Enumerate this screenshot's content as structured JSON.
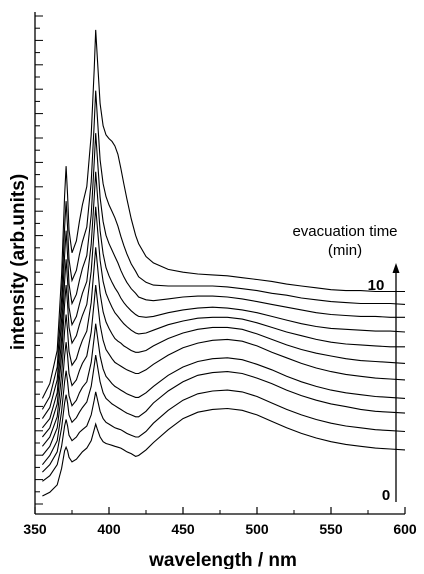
{
  "chart_data": {
    "type": "line",
    "title": "",
    "xlabel": "wavelength / nm",
    "ylabel": "intensity (arb.units)",
    "xlim": [
      350,
      600
    ],
    "x_ticks": [
      350,
      400,
      450,
      500,
      550,
      600
    ],
    "y_ticks_labeled": false,
    "grid": false,
    "legend": "none",
    "line_color": "#000000",
    "annotation": {
      "title_line1": "evacuation time",
      "title_line2": "(min)",
      "arrow_top_label": "10",
      "arrow_bottom_label": "0"
    },
    "series": [
      {
        "x": [
          355,
          360,
          365,
          368,
          370,
          371,
          372,
          373,
          375,
          378,
          380,
          382,
          385,
          388,
          390,
          391,
          392,
          394,
          396,
          398,
          400,
          402,
          404,
          406,
          408,
          410,
          412,
          415,
          418,
          420,
          425,
          430,
          440,
          450,
          460,
          470,
          480,
          490,
          500,
          510,
          520,
          530,
          540,
          550,
          560,
          570,
          580,
          590,
          600
        ],
        "y": [
          0.0,
          0.4,
          1.2,
          3.0,
          4.9,
          5.3,
          4.9,
          4.2,
          3.7,
          4.0,
          4.4,
          4.8,
          5.2,
          6.0,
          7.2,
          7.8,
          7.3,
          6.4,
          5.9,
          5.7,
          5.6,
          5.5,
          5.4,
          5.3,
          5.2,
          5.0,
          4.8,
          4.6,
          4.3,
          4.4,
          5.0,
          5.8,
          7.2,
          8.4,
          9.1,
          9.4,
          9.5,
          9.3,
          8.8,
          8.1,
          7.4,
          6.8,
          6.3,
          5.9,
          5.6,
          5.4,
          5.2,
          5.1,
          5.0
        ]
      },
      {
        "x": [
          355,
          360,
          365,
          368,
          370,
          371,
          372,
          373,
          375,
          378,
          380,
          382,
          385,
          388,
          390,
          391,
          392,
          394,
          396,
          398,
          400,
          402,
          404,
          406,
          408,
          410,
          412,
          415,
          418,
          420,
          425,
          430,
          440,
          450,
          460,
          470,
          480,
          490,
          500,
          510,
          520,
          530,
          540,
          550,
          560,
          570,
          580,
          590,
          600
        ],
        "y": [
          1.6,
          2.2,
          3.4,
          5.4,
          7.6,
          8.3,
          7.6,
          6.6,
          6.0,
          6.4,
          6.9,
          7.2,
          7.6,
          8.8,
          10.4,
          11.3,
          10.6,
          9.2,
          8.4,
          8.0,
          7.8,
          7.6,
          7.4,
          7.3,
          7.2,
          7.0,
          6.8,
          6.6,
          6.4,
          6.4,
          7.0,
          7.9,
          9.3,
          10.4,
          11.1,
          11.4,
          11.5,
          11.3,
          10.8,
          10.1,
          9.4,
          8.8,
          8.3,
          7.9,
          7.6,
          7.4,
          7.2,
          7.1,
          7.0
        ]
      },
      {
        "x": [
          355,
          360,
          365,
          368,
          370,
          371,
          372,
          373,
          375,
          378,
          380,
          382,
          385,
          388,
          390,
          391,
          392,
          394,
          396,
          398,
          400,
          402,
          404,
          406,
          408,
          410,
          412,
          415,
          418,
          420,
          425,
          430,
          440,
          450,
          460,
          470,
          480,
          490,
          500,
          510,
          520,
          530,
          540,
          550,
          560,
          570,
          580,
          590,
          600
        ],
        "y": [
          2.6,
          3.4,
          4.8,
          7.4,
          10.1,
          11.0,
          10.1,
          8.8,
          8.0,
          8.5,
          9.1,
          9.6,
          10.2,
          11.9,
          14.1,
          15.3,
          14.3,
          12.4,
          11.2,
          10.6,
          10.3,
          10.0,
          9.8,
          9.6,
          9.4,
          9.2,
          9.0,
          8.8,
          8.6,
          8.6,
          9.2,
          10.1,
          11.4,
          12.4,
          13.1,
          13.4,
          13.5,
          13.3,
          12.8,
          12.2,
          11.5,
          10.9,
          10.4,
          10.0,
          9.7,
          9.4,
          9.2,
          9.1,
          9.0
        ]
      },
      {
        "x": [
          355,
          360,
          365,
          368,
          370,
          371,
          372,
          373,
          375,
          378,
          380,
          382,
          385,
          388,
          390,
          391,
          392,
          394,
          396,
          398,
          400,
          402,
          404,
          406,
          408,
          410,
          412,
          415,
          418,
          420,
          425,
          430,
          440,
          450,
          460,
          470,
          480,
          490,
          500,
          510,
          520,
          530,
          540,
          550,
          560,
          570,
          580,
          590,
          600
        ],
        "y": [
          3.4,
          4.4,
          6.0,
          9.2,
          12.4,
          13.6,
          12.4,
          10.9,
          9.8,
          10.4,
          11.2,
          11.8,
          12.4,
          14.5,
          17.2,
          18.7,
          17.5,
          15.2,
          13.8,
          13.0,
          12.6,
          12.2,
          11.9,
          11.7,
          11.5,
          11.3,
          11.1,
          10.9,
          10.7,
          10.7,
          11.2,
          11.9,
          13.1,
          14.0,
          14.6,
          14.9,
          15.0,
          14.8,
          14.3,
          13.7,
          13.0,
          12.4,
          11.9,
          11.5,
          11.2,
          11.0,
          10.8,
          10.7,
          10.6
        ]
      },
      {
        "x": [
          355,
          360,
          365,
          368,
          370,
          371,
          372,
          373,
          375,
          378,
          380,
          382,
          385,
          388,
          390,
          391,
          392,
          394,
          396,
          398,
          400,
          402,
          404,
          406,
          408,
          410,
          412,
          415,
          418,
          420,
          425,
          430,
          440,
          450,
          460,
          470,
          480,
          490,
          500,
          510,
          520,
          530,
          540,
          550,
          560,
          570,
          580,
          590,
          600
        ],
        "y": [
          4.4,
          5.4,
          7.4,
          11.2,
          15.2,
          16.7,
          15.2,
          13.3,
          12.0,
          12.6,
          13.6,
          14.4,
          15.2,
          17.8,
          21.1,
          22.9,
          21.4,
          18.6,
          16.9,
          15.9,
          15.4,
          14.9,
          14.5,
          14.3,
          14.1,
          13.9,
          13.7,
          13.5,
          13.3,
          13.3,
          13.7,
          14.3,
          15.3,
          16.1,
          16.6,
          16.9,
          17.0,
          16.8,
          16.3,
          15.6,
          15.0,
          14.4,
          13.9,
          13.5,
          13.2,
          13.0,
          12.8,
          12.7,
          12.6
        ]
      },
      {
        "x": [
          355,
          360,
          365,
          368,
          370,
          371,
          372,
          373,
          375,
          378,
          380,
          382,
          385,
          388,
          390,
          391,
          392,
          394,
          396,
          398,
          400,
          402,
          404,
          406,
          408,
          410,
          412,
          415,
          418,
          420,
          425,
          430,
          440,
          450,
          460,
          470,
          480,
          490,
          500,
          510,
          520,
          530,
          540,
          550,
          560,
          570,
          580,
          590,
          600
        ],
        "y": [
          5.4,
          6.4,
          8.6,
          13.2,
          17.9,
          19.7,
          17.9,
          15.7,
          14.2,
          14.9,
          16.0,
          16.9,
          17.9,
          21.0,
          24.9,
          27.0,
          25.3,
          22.0,
          20.0,
          18.9,
          18.2,
          17.6,
          17.1,
          16.8,
          16.6,
          16.3,
          16.1,
          15.8,
          15.6,
          15.6,
          15.8,
          16.3,
          17.1,
          17.7,
          18.1,
          18.3,
          18.3,
          18.1,
          17.6,
          17.0,
          16.4,
          15.9,
          15.5,
          15.2,
          14.9,
          14.7,
          14.6,
          14.5,
          14.4
        ]
      },
      {
        "x": [
          355,
          360,
          365,
          368,
          370,
          371,
          372,
          373,
          375,
          378,
          380,
          382,
          385,
          388,
          390,
          391,
          392,
          394,
          396,
          398,
          400,
          402,
          404,
          406,
          408,
          410,
          412,
          415,
          418,
          420,
          425,
          430,
          440,
          450,
          460,
          470,
          480,
          490,
          500,
          510,
          520,
          530,
          540,
          550,
          560,
          570,
          580,
          590,
          600
        ],
        "y": [
          6.4,
          7.4,
          10.0,
          15.3,
          20.8,
          22.9,
          20.8,
          18.3,
          16.6,
          17.4,
          18.6,
          19.6,
          20.8,
          24.4,
          28.9,
          31.4,
          29.4,
          25.6,
          23.3,
          22.0,
          21.2,
          20.5,
          19.9,
          19.5,
          19.1,
          18.7,
          18.4,
          18.0,
          17.7,
          17.6,
          17.7,
          18.0,
          18.6,
          19.0,
          19.3,
          19.4,
          19.4,
          19.2,
          18.8,
          18.3,
          17.8,
          17.4,
          17.0,
          16.7,
          16.5,
          16.4,
          16.3,
          16.2,
          16.2
        ]
      },
      {
        "x": [
          355,
          360,
          365,
          368,
          370,
          371,
          372,
          373,
          375,
          378,
          380,
          382,
          385,
          388,
          390,
          391,
          392,
          394,
          396,
          398,
          400,
          402,
          404,
          406,
          408,
          410,
          412,
          415,
          418,
          420,
          425,
          430,
          440,
          450,
          460,
          470,
          480,
          490,
          500,
          510,
          520,
          530,
          540,
          550,
          560,
          570,
          580,
          590,
          600
        ],
        "y": [
          7.4,
          8.4,
          11.2,
          17.1,
          23.3,
          25.7,
          23.3,
          20.5,
          18.6,
          19.5,
          20.8,
          22.0,
          23.3,
          27.3,
          32.4,
          35.2,
          33.0,
          28.8,
          26.3,
          24.8,
          23.9,
          23.2,
          22.6,
          22.1,
          21.5,
          21.0,
          20.6,
          20.1,
          19.7,
          19.5,
          19.4,
          19.5,
          19.9,
          20.2,
          20.4,
          20.5,
          20.4,
          20.2,
          19.9,
          19.5,
          19.1,
          18.7,
          18.4,
          18.2,
          18.1,
          18.0,
          17.9,
          17.9,
          17.8
        ]
      },
      {
        "x": [
          355,
          360,
          365,
          368,
          370,
          371,
          372,
          373,
          375,
          378,
          380,
          382,
          385,
          388,
          390,
          391,
          392,
          394,
          396,
          398,
          400,
          402,
          404,
          406,
          408,
          410,
          412,
          415,
          418,
          420,
          425,
          430,
          440,
          450,
          460,
          470,
          480,
          490,
          500,
          510,
          520,
          530,
          540,
          550,
          560,
          570,
          580,
          590,
          600
        ],
        "y": [
          8.4,
          9.6,
          12.6,
          19.2,
          26.1,
          28.8,
          26.1,
          23.0,
          20.9,
          21.9,
          23.4,
          24.7,
          26.1,
          30.5,
          36.2,
          39.4,
          37.0,
          32.4,
          29.8,
          28.3,
          27.4,
          26.7,
          26.0,
          25.3,
          24.5,
          23.8,
          23.2,
          22.5,
          22.0,
          21.6,
          21.3,
          21.2,
          21.4,
          21.6,
          21.7,
          21.7,
          21.6,
          21.4,
          21.1,
          20.8,
          20.5,
          20.2,
          19.9,
          19.7,
          19.6,
          19.5,
          19.5,
          19.4,
          19.4
        ]
      },
      {
        "x": [
          355,
          360,
          365,
          368,
          370,
          371,
          372,
          373,
          375,
          378,
          380,
          382,
          385,
          388,
          390,
          391,
          392,
          394,
          396,
          398,
          400,
          402,
          404,
          406,
          408,
          410,
          412,
          415,
          418,
          420,
          425,
          430,
          440,
          450,
          460,
          470,
          480,
          490,
          500,
          510,
          520,
          530,
          540,
          550,
          560,
          570,
          580,
          590,
          600
        ],
        "y": [
          9.4,
          10.8,
          14.0,
          21.4,
          29.1,
          32.0,
          29.1,
          25.7,
          23.4,
          24.5,
          26.2,
          27.6,
          29.2,
          34.1,
          40.4,
          44.0,
          41.4,
          36.5,
          33.9,
          32.5,
          31.6,
          30.9,
          30.2,
          29.3,
          28.2,
          27.2,
          26.3,
          25.2,
          24.4,
          23.8,
          23.2,
          22.9,
          22.8,
          22.8,
          22.8,
          22.8,
          22.7,
          22.5,
          22.3,
          22.0,
          21.8,
          21.5,
          21.3,
          21.1,
          21.0,
          20.9,
          20.9,
          20.9,
          20.8
        ]
      },
      {
        "x": [
          355,
          360,
          365,
          368,
          370,
          371,
          372,
          373,
          375,
          378,
          380,
          382,
          385,
          388,
          390,
          391,
          392,
          394,
          396,
          398,
          400,
          402,
          404,
          406,
          408,
          410,
          412,
          415,
          418,
          420,
          425,
          430,
          440,
          450,
          460,
          470,
          480,
          490,
          500,
          510,
          520,
          530,
          540,
          550,
          560,
          570,
          580,
          590,
          600
        ],
        "y": [
          10.6,
          12.2,
          15.8,
          24.0,
          32.6,
          35.8,
          32.6,
          28.9,
          26.4,
          27.7,
          29.8,
          31.6,
          33.6,
          39.2,
          46.3,
          50.6,
          47.8,
          42.6,
          40.2,
          39.2,
          38.8,
          38.5,
          38.0,
          37.1,
          35.6,
          33.9,
          32.3,
          30.1,
          28.3,
          27.4,
          26.0,
          25.3,
          24.6,
          24.3,
          24.1,
          24.0,
          23.9,
          23.7,
          23.5,
          23.3,
          23.0,
          22.8,
          22.6,
          22.4,
          22.3,
          22.3,
          22.2,
          22.2,
          22.2
        ]
      }
    ]
  }
}
